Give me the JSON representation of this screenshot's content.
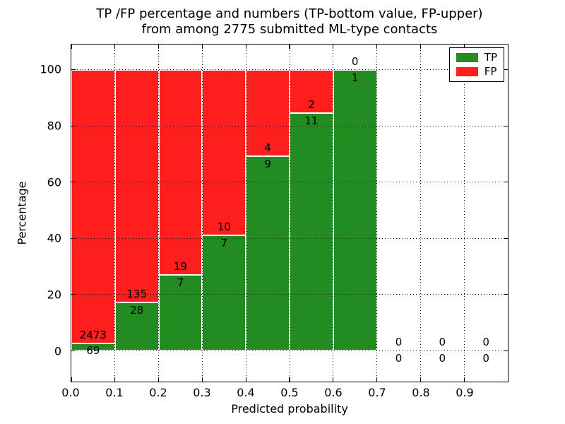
{
  "figure": {
    "title_line1": "TP /FP percentage and numbers (TP-bottom value, FP-upper)",
    "title_line2": "from among 2775 submitted ML-type contacts"
  },
  "chart_data": {
    "type": "bar",
    "stacked": true,
    "title": "TP /FP percentage and numbers (TP-bottom value, FP-upper) from among 2775 submitted ML-type contacts",
    "xlabel": "Predicted probability",
    "ylabel": "Percentage",
    "xlim": [
      0.0,
      1.0
    ],
    "ylim": [
      -11,
      109
    ],
    "xticks": [
      0.0,
      0.1,
      0.2,
      0.3,
      0.4,
      0.5,
      0.6,
      0.7,
      0.8,
      0.9
    ],
    "xtick_labels": [
      "0.0",
      "0.1",
      "0.2",
      "0.3",
      "0.4",
      "0.5",
      "0.6",
      "0.7",
      "0.8",
      "0.9"
    ],
    "yticks": [
      0,
      20,
      40,
      60,
      80,
      100
    ],
    "ytick_labels": [
      "0",
      "20",
      "40",
      "60",
      "80",
      "100"
    ],
    "grid": true,
    "bar_width": 0.1,
    "value_unit": "percent of bin total; bars sum to 100",
    "colors": {
      "tp": "#228B22",
      "fp": "#ff1e1e",
      "edge": "#ffffff"
    },
    "legend": {
      "position": "upper right",
      "entries": [
        {
          "label": "TP",
          "color": "#228B22"
        },
        {
          "label": "FP",
          "color": "#ff1e1e"
        }
      ]
    },
    "bins": [
      {
        "range": [
          0.0,
          0.1
        ],
        "tp": 69,
        "fp": 2473,
        "tp_pct": 2.7
      },
      {
        "range": [
          0.1,
          0.2
        ],
        "tp": 28,
        "fp": 135,
        "tp_pct": 17.2
      },
      {
        "range": [
          0.2,
          0.3
        ],
        "tp": 7,
        "fp": 19,
        "tp_pct": 26.9
      },
      {
        "range": [
          0.3,
          0.4
        ],
        "tp": 7,
        "fp": 10,
        "tp_pct": 41.2
      },
      {
        "range": [
          0.4,
          0.5
        ],
        "tp": 9,
        "fp": 4,
        "tp_pct": 69.2
      },
      {
        "range": [
          0.5,
          0.6
        ],
        "tp": 11,
        "fp": 2,
        "tp_pct": 84.6
      },
      {
        "range": [
          0.6,
          0.7
        ],
        "tp": 1,
        "fp": 0,
        "tp_pct": 100.0
      },
      {
        "range": [
          0.7,
          0.8
        ],
        "tp": 0,
        "fp": 0,
        "tp_pct": null
      },
      {
        "range": [
          0.8,
          0.9
        ],
        "tp": 0,
        "fp": 0,
        "tp_pct": null
      },
      {
        "range": [
          0.9,
          1.0
        ],
        "tp": 0,
        "fp": 0,
        "tp_pct": null
      }
    ]
  }
}
